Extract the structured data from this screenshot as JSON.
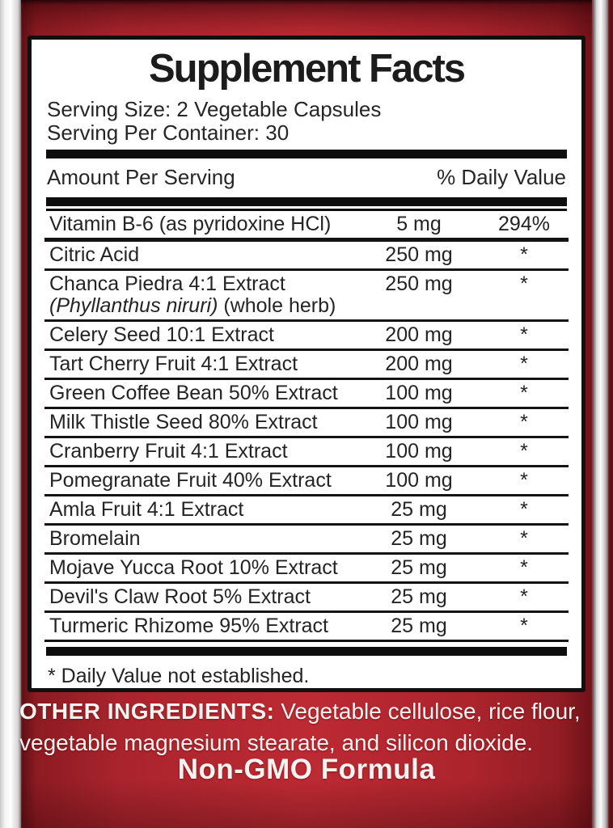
{
  "panel": {
    "title": "Supplement Facts",
    "serving_size": "Serving Size: 2 Vegetable Capsules",
    "servings_per_container": "Serving Per Container: 30",
    "columns": {
      "left": "Amount Per Serving",
      "right": "% Daily Value"
    },
    "rows": [
      {
        "name": "Vitamin B-6 (as pyridoxine HCl)",
        "amount": "5 mg",
        "dv": "294%"
      },
      {
        "name": "Citric Acid",
        "amount": "250 mg",
        "dv": "*"
      },
      {
        "name": "Chanca Piedra 4:1 Extract",
        "name_line2_italic": "(Phyllanthus niruri)",
        "name_line2_plain": "(whole herb)",
        "amount": "250 mg",
        "dv": "*"
      },
      {
        "name": "Celery Seed 10:1 Extract",
        "amount": "200 mg",
        "dv": "*"
      },
      {
        "name": "Tart Cherry Fruit 4:1 Extract",
        "amount": "200 mg",
        "dv": "*"
      },
      {
        "name": "Green Coffee Bean 50% Extract",
        "amount": "100 mg",
        "dv": "*"
      },
      {
        "name": "Milk Thistle Seed 80% Extract",
        "amount": "100 mg",
        "dv": "*"
      },
      {
        "name": "Cranberry Fruit 4:1 Extract",
        "amount": "100 mg",
        "dv": "*"
      },
      {
        "name": "Pomegranate Fruit 40% Extract",
        "amount": "100 mg",
        "dv": "*"
      },
      {
        "name": "Amla Fruit 4:1 Extract",
        "amount": "25 mg",
        "dv": "*"
      },
      {
        "name": "Bromelain",
        "amount": "25 mg",
        "dv": "*"
      },
      {
        "name": "Mojave Yucca Root 10% Extract",
        "amount": "25 mg",
        "dv": "*"
      },
      {
        "name": "Devil's Claw Root 5% Extract",
        "amount": "25 mg",
        "dv": "*"
      },
      {
        "name": "Turmeric Rhizome 95% Extract",
        "amount": "25 mg",
        "dv": "*"
      }
    ],
    "footnote": "* Daily Value not established."
  },
  "bottom": {
    "other_ingredients_label": "OTHER INGREDIENTS:",
    "other_ingredients_text": " Vegetable cellulose, rice flour, vegetable magnesium stearate, and silicon dioxide.",
    "claim": "Non-GMO Formula"
  },
  "colors": {
    "label_red": "#bd2a33",
    "label_red_dark": "#6b1118",
    "edge_silver": "#e8e8e8",
    "panel_bg": "#ffffff",
    "bar_black": "#0d0d0d",
    "text_dark": "#242424",
    "text_white": "#f6f3f0"
  }
}
